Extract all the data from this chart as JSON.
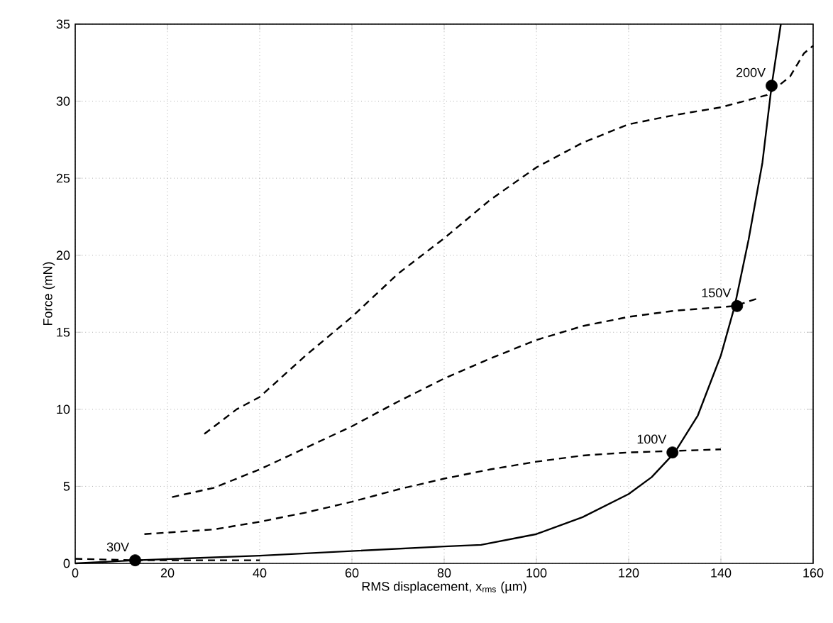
{
  "chart_data": {
    "type": "line",
    "xlabel": "RMS displacement, x$_{rms}$ (µm)",
    "ylabel": "Force (mN)",
    "xlim": [
      0,
      160
    ],
    "ylim": [
      0,
      35
    ],
    "xticks": [
      0,
      20,
      40,
      60,
      80,
      100,
      120,
      140,
      160
    ],
    "yticks": [
      0,
      5,
      10,
      15,
      20,
      25,
      30,
      35
    ],
    "grid": true,
    "series": [
      {
        "line_style": "dashed",
        "color": "#000000",
        "x": [
          28,
          35,
          40,
          50,
          60,
          70,
          80,
          90,
          100,
          110,
          120,
          130,
          140,
          150,
          155,
          158,
          160
        ],
        "values": [
          8.4,
          10,
          10.8,
          13.5,
          16,
          18.8,
          21.1,
          23.6,
          25.7,
          27.3,
          28.5,
          29.1,
          29.6,
          30.4,
          31.6,
          33.1,
          33.6
        ]
      },
      {
        "line_style": "dashed",
        "color": "#000000",
        "x": [
          21,
          30,
          40,
          50,
          60,
          70,
          80,
          90,
          100,
          110,
          120,
          130,
          143,
          148
        ],
        "values": [
          4.3,
          4.9,
          6.1,
          7.5,
          8.9,
          10.5,
          12,
          13.3,
          14.5,
          15.4,
          16,
          16.4,
          16.7,
          17.2
        ]
      },
      {
        "line_style": "dashed",
        "color": "#000000",
        "x": [
          15,
          20,
          30,
          40,
          50,
          60,
          70,
          80,
          90,
          100,
          110,
          120,
          130,
          140
        ],
        "values": [
          1.9,
          2,
          2.2,
          2.7,
          3.3,
          4,
          4.8,
          5.5,
          6.1,
          6.6,
          7,
          7.2,
          7.3,
          7.4
        ]
      },
      {
        "line_style": "dashed",
        "color": "#000000",
        "x": [
          0,
          13,
          40
        ],
        "values": [
          0.3,
          0.2,
          0.2
        ]
      },
      {
        "line_style": "solid",
        "color": "#000000",
        "x": [
          0,
          13,
          40,
          60,
          80,
          88,
          100,
          110,
          120,
          125,
          130,
          135,
          140,
          143,
          146,
          149,
          151,
          153
        ],
        "values": [
          0,
          0.2,
          0.5,
          0.8,
          1.1,
          1.2,
          1.9,
          3,
          4.5,
          5.6,
          7.2,
          9.6,
          13.5,
          16.7,
          21,
          26,
          31,
          35
        ]
      },
      {
        "type": "scatter",
        "marker": "circle",
        "color": "#000000",
        "x": [
          13,
          129.5,
          143.5,
          151
        ],
        "values": [
          0.2,
          7.2,
          16.7,
          31
        ]
      }
    ],
    "annotations": [
      {
        "text": "200V",
        "x": 151,
        "y": 31
      },
      {
        "text": "150V",
        "x": 143.5,
        "y": 16.7
      },
      {
        "text": "100V",
        "x": 129.5,
        "y": 7.2
      },
      {
        "text": "30V",
        "x": 13,
        "y": 0.2
      }
    ]
  }
}
